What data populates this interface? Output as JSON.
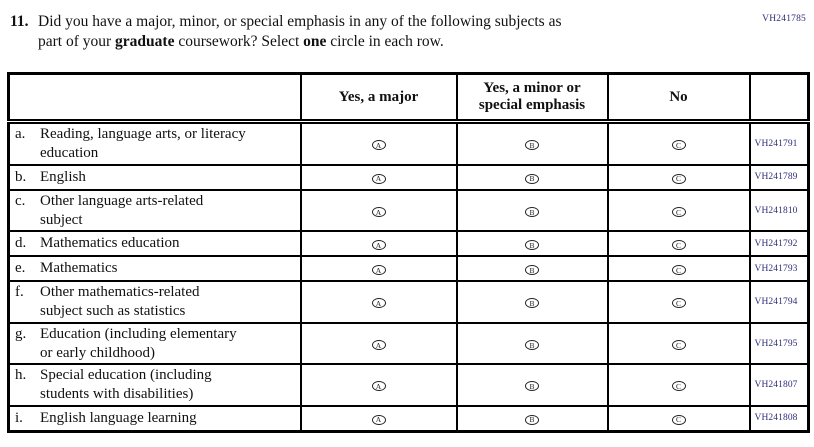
{
  "form_code": "VH241785",
  "question": {
    "number": "11.",
    "lines": [
      [
        {
          "text": "Did you have a major, minor, or special emphasis in any of the following subjects as",
          "bold": false
        }
      ],
      [
        {
          "text": "part of your ",
          "bold": false
        },
        {
          "text": "graduate",
          "bold": true
        },
        {
          "text": " coursework? Select ",
          "bold": false
        },
        {
          "text": "one",
          "bold": true
        },
        {
          "text": " circle in each row.",
          "bold": false
        }
      ]
    ]
  },
  "table": {
    "headers": {
      "subject": "",
      "major": "Yes, a major",
      "minor": "Yes, a minor or\nspecial emphasis",
      "no": "No",
      "code": ""
    },
    "options": [
      "A",
      "B",
      "C"
    ],
    "rows": [
      {
        "letter": "a.",
        "label": "Reading, language arts, or literacy\neducation",
        "code": "VH241791"
      },
      {
        "letter": "b.",
        "label": "English",
        "code": "VH241789"
      },
      {
        "letter": "c.",
        "label": "Other language arts-related\nsubject",
        "code": "VH241810"
      },
      {
        "letter": "d.",
        "label": "Mathematics education",
        "code": "VH241792"
      },
      {
        "letter": "e.",
        "label": "Mathematics",
        "code": "VH241793"
      },
      {
        "letter": "f.",
        "label": "Other mathematics-related\nsubject such as statistics",
        "code": "VH241794"
      },
      {
        "letter": "g.",
        "label": "Education (including elementary\nor early childhood)",
        "code": "VH241795"
      },
      {
        "letter": "h.",
        "label": "Special education (including\nstudents with disabilities)",
        "code": "VH241807"
      },
      {
        "letter": "i.",
        "label": "English language learning",
        "code": "VH241808"
      }
    ]
  },
  "colors": {
    "code_text": "#2e2e78",
    "text": "#111111",
    "border": "#000000"
  }
}
